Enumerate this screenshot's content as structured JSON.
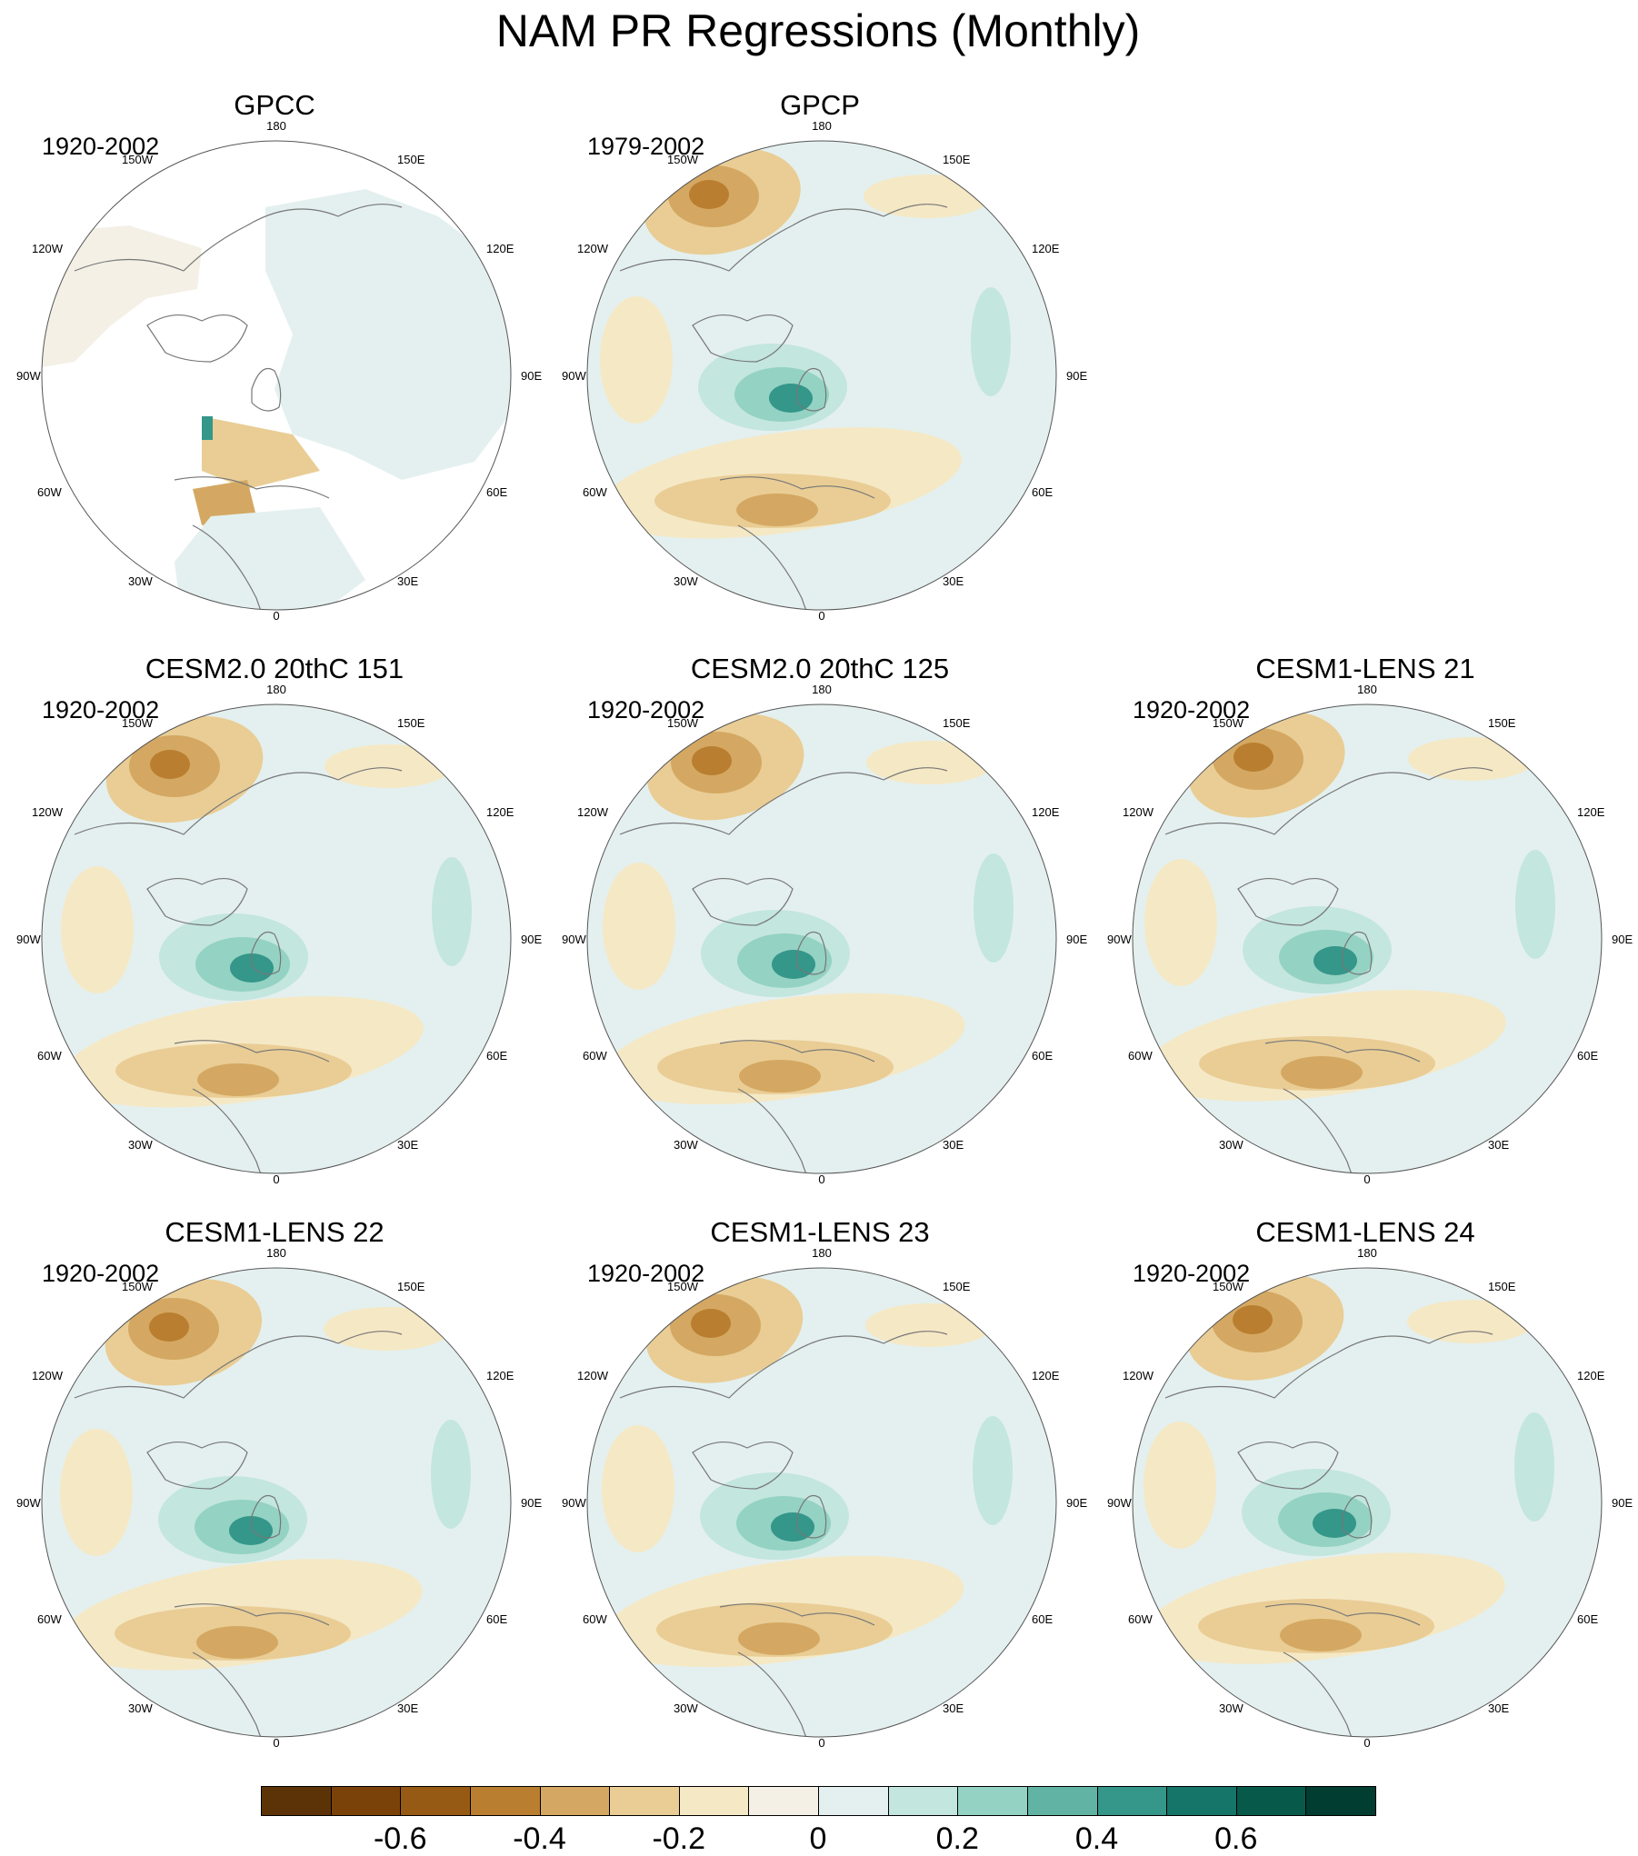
{
  "title": "NAM PR Regressions (Monthly)",
  "lon_labels": {
    "top": "180",
    "bottom": "0",
    "left": "90W",
    "right": "90E",
    "ul_high": "150W",
    "ul_low": "120W",
    "ur_high": "150E",
    "ur_low": "120E",
    "ll_high": "60W",
    "ll_low": "30W",
    "lr_high": "60E",
    "lr_low": "30E"
  },
  "panels": [
    {
      "title": "GPCC",
      "period": "1920-2002",
      "data_coverage": "land-only"
    },
    {
      "title": "GPCP",
      "period": "1979-2002",
      "data_coverage": "global"
    },
    {
      "title": "CESM2.0 20thC 151",
      "period": "1920-2002",
      "data_coverage": "global"
    },
    {
      "title": "CESM2.0 20thC 125",
      "period": "1920-2002",
      "data_coverage": "global"
    },
    {
      "title": "CESM1-LENS 21",
      "period": "1920-2002",
      "data_coverage": "global"
    },
    {
      "title": "CESM1-LENS 22",
      "period": "1920-2002",
      "data_coverage": "global"
    },
    {
      "title": "CESM1-LENS 23",
      "period": "1920-2002",
      "data_coverage": "global"
    },
    {
      "title": "CESM1-LENS 24",
      "period": "1920-2002",
      "data_coverage": "global"
    }
  ],
  "colorbar": {
    "colors": [
      "#5c3307",
      "#7a4209",
      "#975a14",
      "#b97e2f",
      "#d4a862",
      "#e9cd95",
      "#f5e8c5",
      "#f4f0e6",
      "#e4f0ef",
      "#c3e6de",
      "#94d2c3",
      "#61b4a3",
      "#35968a",
      "#157568",
      "#075a4a",
      "#013d31"
    ],
    "labels": [
      "-0.6",
      "-0.4",
      "-0.2",
      "0",
      "0.2",
      "0.4",
      "0.6"
    ],
    "label_values": [
      -0.6,
      -0.4,
      -0.2,
      0,
      0.2,
      0.4,
      0.6
    ],
    "min": -0.8,
    "max": 0.8
  }
}
